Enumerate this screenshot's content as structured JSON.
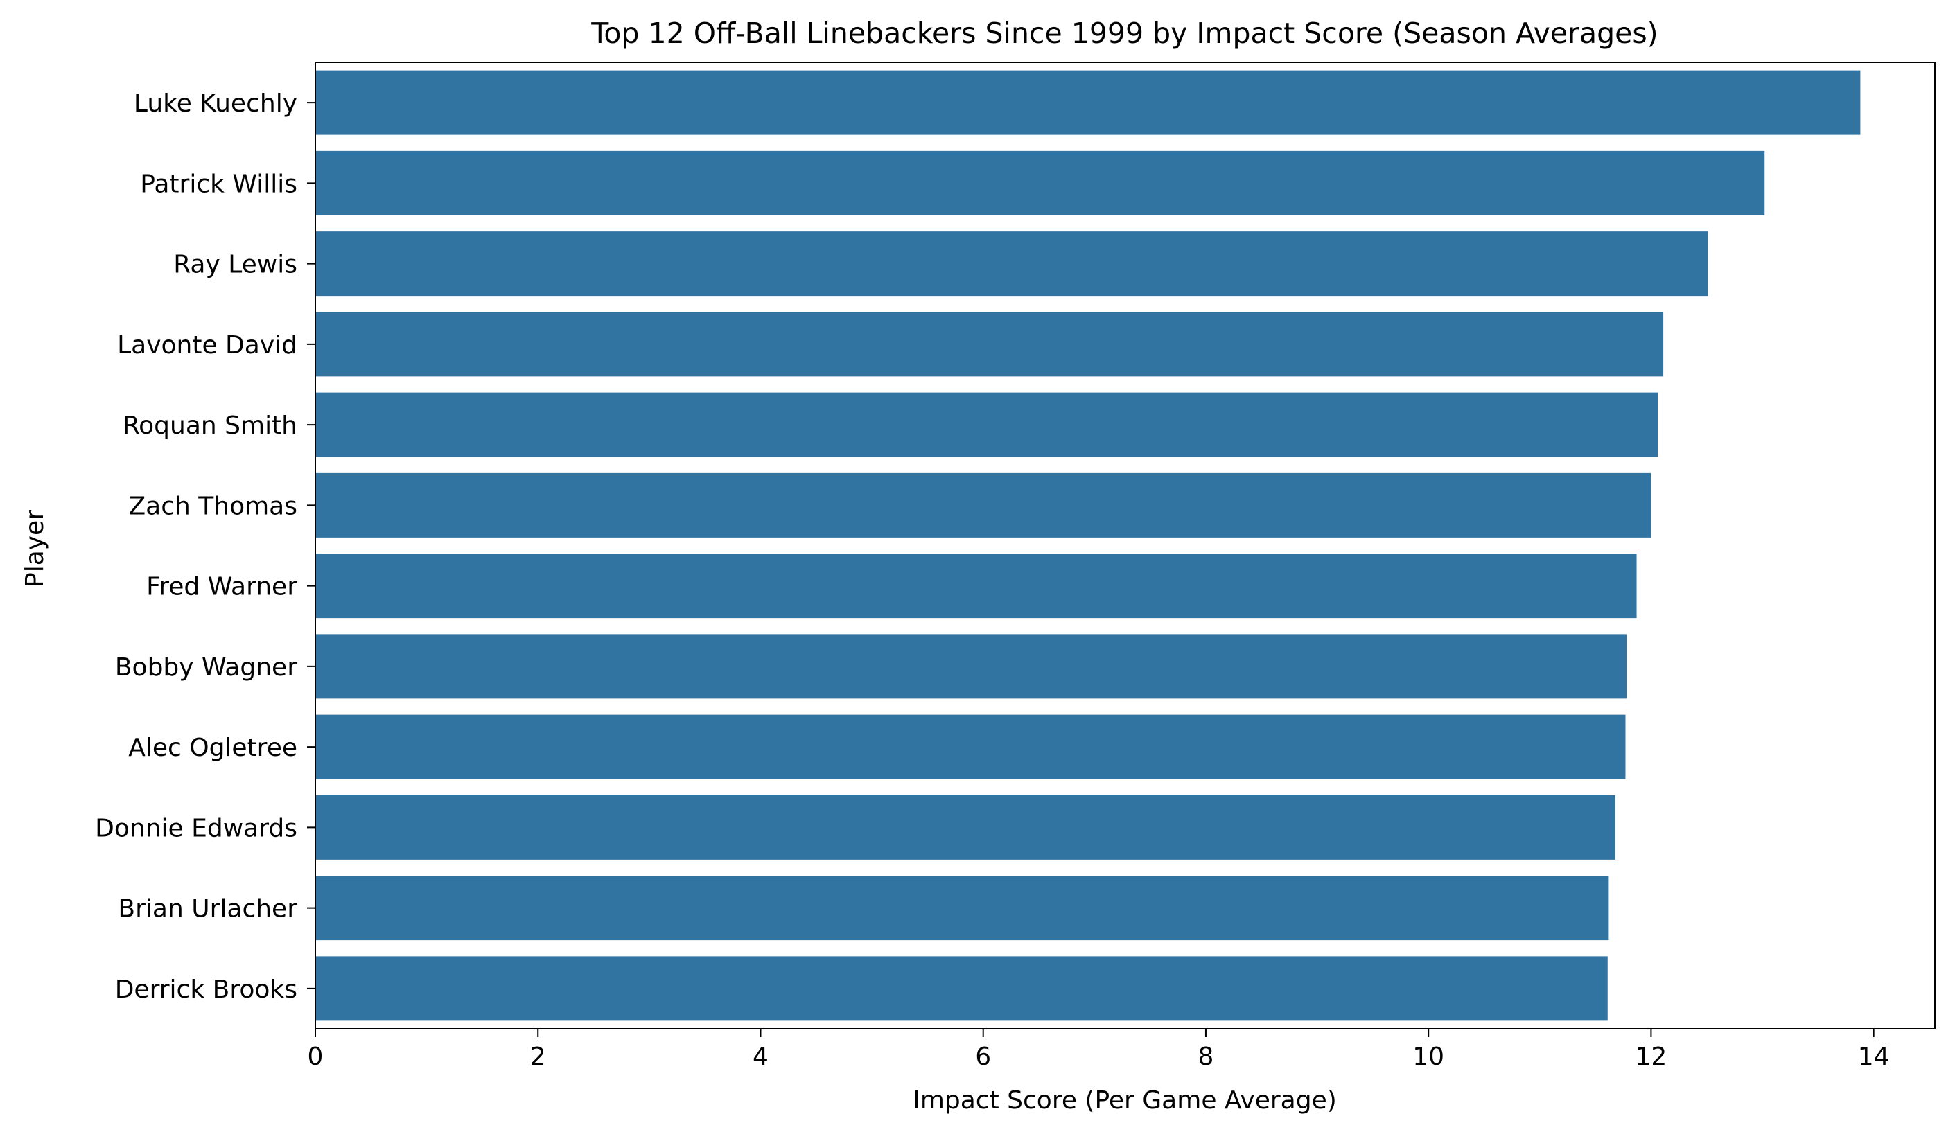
{
  "chart_data": {
    "type": "bar",
    "orientation": "horizontal",
    "title": "Top 12 Off-Ball Linebackers Since 1999 by Impact Score (Season Averages)",
    "xlabel": "Impact Score (Per Game Average)",
    "ylabel": "Player",
    "xlim": [
      0,
      14.55
    ],
    "xticks": [
      0,
      2,
      4,
      6,
      8,
      10,
      12,
      14
    ],
    "grid": false,
    "legend": "none",
    "bar_color": "#3274a1",
    "categories": [
      "Luke Kuechly",
      "Patrick Willis",
      "Ray Lewis",
      "Lavonte David",
      "Roquan Smith",
      "Zach Thomas",
      "Fred Warner",
      "Bobby Wagner",
      "Alec Ogletree",
      "Donnie Edwards",
      "Brian Urlacher",
      "Derrick Brooks"
    ],
    "values": [
      13.88,
      13.02,
      12.51,
      12.11,
      12.06,
      12.0,
      11.87,
      11.78,
      11.77,
      11.68,
      11.62,
      11.61
    ]
  }
}
